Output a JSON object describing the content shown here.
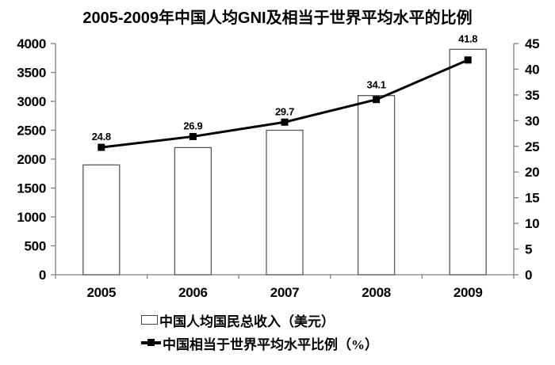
{
  "title": "2005-2009年中国人均GNI及相当于世界平均水平的比例",
  "chart_data": {
    "type": "bar",
    "subtype": "bar-line-combo",
    "categories": [
      "2005",
      "2006",
      "2007",
      "2008",
      "2009"
    ],
    "series": [
      {
        "name": "中国人均国民总收入（美元）",
        "type": "bar",
        "y_axis": "left",
        "values": [
          1900,
          2200,
          2500,
          3100,
          3900
        ]
      },
      {
        "name": "中国相当于世界平均水平比例（%）",
        "type": "line",
        "y_axis": "right",
        "values": [
          24.8,
          26.9,
          29.7,
          34.1,
          41.8
        ],
        "point_labels": [
          "24.8",
          "26.9",
          "29.7",
          "34.1",
          "41.8"
        ]
      }
    ],
    "left_axis": {
      "min": 0,
      "max": 4000,
      "step": 500,
      "tick_labels": [
        "4000",
        "3500",
        "3000",
        "2500",
        "2000",
        "1500",
        "1000",
        "500",
        "0"
      ]
    },
    "right_axis": {
      "min": 0,
      "max": 45,
      "step": 5,
      "tick_labels": [
        "45",
        "40",
        "35",
        "30",
        "25",
        "20",
        "15",
        "10",
        "5",
        "0"
      ]
    },
    "grid": false,
    "legend_position": "bottom"
  },
  "colors": {
    "background": "#ffffff",
    "bar_fill": "#ffffff",
    "bar_border": "#595959",
    "line": "#000000",
    "marker": "#000000",
    "axis": "#808080",
    "text": "#000000"
  }
}
